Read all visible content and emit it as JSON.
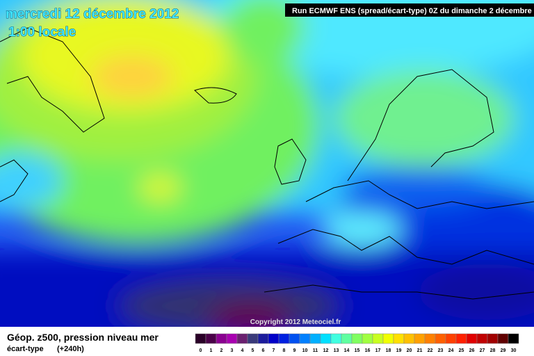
{
  "header": {
    "title": "mercredi 12 décembre 2012",
    "subtitle": "1:00 locale",
    "run": "Run ECMWF ENS (spread/écart-type) 0Z du dimanche 2 décembre"
  },
  "map": {
    "copyright": "Copyright 2012 Meteociel.fr"
  },
  "footer": {
    "title": "Géop. z500, pression niveau mer",
    "variable": "écart-type",
    "lead": "(+240h)"
  },
  "legend": {
    "labels": [
      "0",
      "1",
      "2",
      "3",
      "4",
      "5",
      "6",
      "7",
      "8",
      "9",
      "10",
      "11",
      "12",
      "13",
      "14",
      "15",
      "16",
      "17",
      "18",
      "19",
      "20",
      "21",
      "22",
      "23",
      "24",
      "25",
      "26",
      "27",
      "28",
      "29",
      "30"
    ],
    "colors": [
      "#2a0028",
      "#4a0048",
      "#8a0090",
      "#a800b0",
      "#6a2070",
      "#3a3a7a",
      "#1c1c9c",
      "#0000c8",
      "#0020e0",
      "#0050f0",
      "#0080ff",
      "#00b0ff",
      "#00e0ff",
      "#40ffe0",
      "#60ffa0",
      "#80ff60",
      "#a0ff40",
      "#c8ff20",
      "#f0ff00",
      "#ffe000",
      "#ffc000",
      "#ffa000",
      "#ff8000",
      "#ff6000",
      "#ff4000",
      "#ff2000",
      "#e00000",
      "#c00000",
      "#a00000",
      "#600000",
      "#000000"
    ]
  }
}
